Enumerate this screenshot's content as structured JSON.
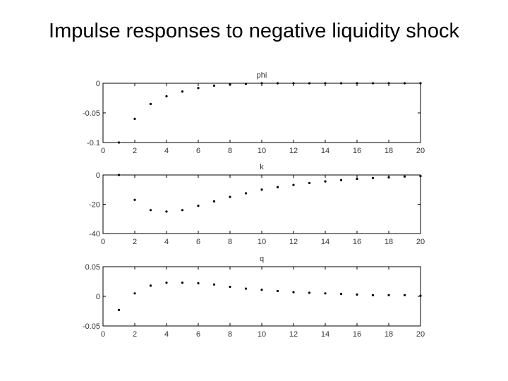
{
  "slide": {
    "title": "Impulse responses to negative liquidity shock"
  },
  "chart_data": [
    {
      "type": "scatter",
      "title": "phi",
      "xlim": [
        0,
        20
      ],
      "ylim": [
        -0.1,
        0
      ],
      "x_ticks": [
        "0",
        "2",
        "4",
        "6",
        "8",
        "10",
        "12",
        "14",
        "16",
        "18",
        "20"
      ],
      "y_ticks": [
        {
          "value": 0,
          "label": "0"
        },
        {
          "value": -0.05,
          "label": "-0.05"
        },
        {
          "value": -0.1,
          "label": "-0.1"
        }
      ],
      "series": [
        {
          "x": [
            1,
            2,
            3,
            4,
            5,
            6,
            7,
            8,
            9,
            10,
            11,
            12,
            13,
            14,
            15,
            16,
            17,
            18,
            19,
            20
          ],
          "y": [
            -0.1,
            -0.06,
            -0.035,
            -0.022,
            -0.014,
            -0.008,
            -0.004,
            -0.002,
            -0.001,
            0,
            0,
            0,
            0,
            0,
            0,
            0,
            0,
            0,
            0,
            0
          ]
        }
      ],
      "marker_color": "#000000",
      "grid": false
    },
    {
      "type": "scatter",
      "title": "k",
      "xlim": [
        0,
        20
      ],
      "ylim": [
        -40,
        0
      ],
      "x_ticks": [
        "0",
        "2",
        "4",
        "6",
        "8",
        "10",
        "12",
        "14",
        "16",
        "18",
        "20"
      ],
      "y_ticks": [
        {
          "value": 0,
          "label": "0"
        },
        {
          "value": -20,
          "label": "-20"
        },
        {
          "value": -40,
          "label": "-40"
        }
      ],
      "series": [
        {
          "x": [
            1,
            2,
            3,
            4,
            5,
            6,
            7,
            8,
            9,
            10,
            11,
            12,
            13,
            14,
            15,
            16,
            17,
            18,
            19,
            20
          ],
          "y": [
            0,
            -17,
            -24,
            -25,
            -24,
            -21,
            -18,
            -15,
            -12.5,
            -10,
            -8.3,
            -6.8,
            -5.5,
            -4.4,
            -3.5,
            -2.7,
            -2.1,
            -1.6,
            -1.1,
            -0.8
          ]
        }
      ],
      "marker_color": "#000000",
      "grid": false
    },
    {
      "type": "scatter",
      "title": "q",
      "xlim": [
        0,
        20
      ],
      "ylim": [
        -0.05,
        0.05
      ],
      "x_ticks": [
        "0",
        "2",
        "4",
        "6",
        "8",
        "10",
        "12",
        "14",
        "16",
        "18",
        "20"
      ],
      "y_ticks": [
        {
          "value": 0.05,
          "label": "0.05"
        },
        {
          "value": 0,
          "label": "0"
        },
        {
          "value": -0.05,
          "label": "-0.05"
        }
      ],
      "series": [
        {
          "x": [
            1,
            2,
            3,
            4,
            5,
            6,
            7,
            8,
            9,
            10,
            11,
            12,
            13,
            14,
            15,
            16,
            17,
            18,
            19,
            20
          ],
          "y": [
            -0.023,
            0.005,
            0.018,
            0.023,
            0.023,
            0.022,
            0.02,
            0.016,
            0.013,
            0.011,
            0.009,
            0.007,
            0.006,
            0.005,
            0.004,
            0.003,
            0.002,
            0.002,
            0.002,
            0.001
          ]
        }
      ],
      "marker_color": "#000000",
      "grid": false
    }
  ]
}
